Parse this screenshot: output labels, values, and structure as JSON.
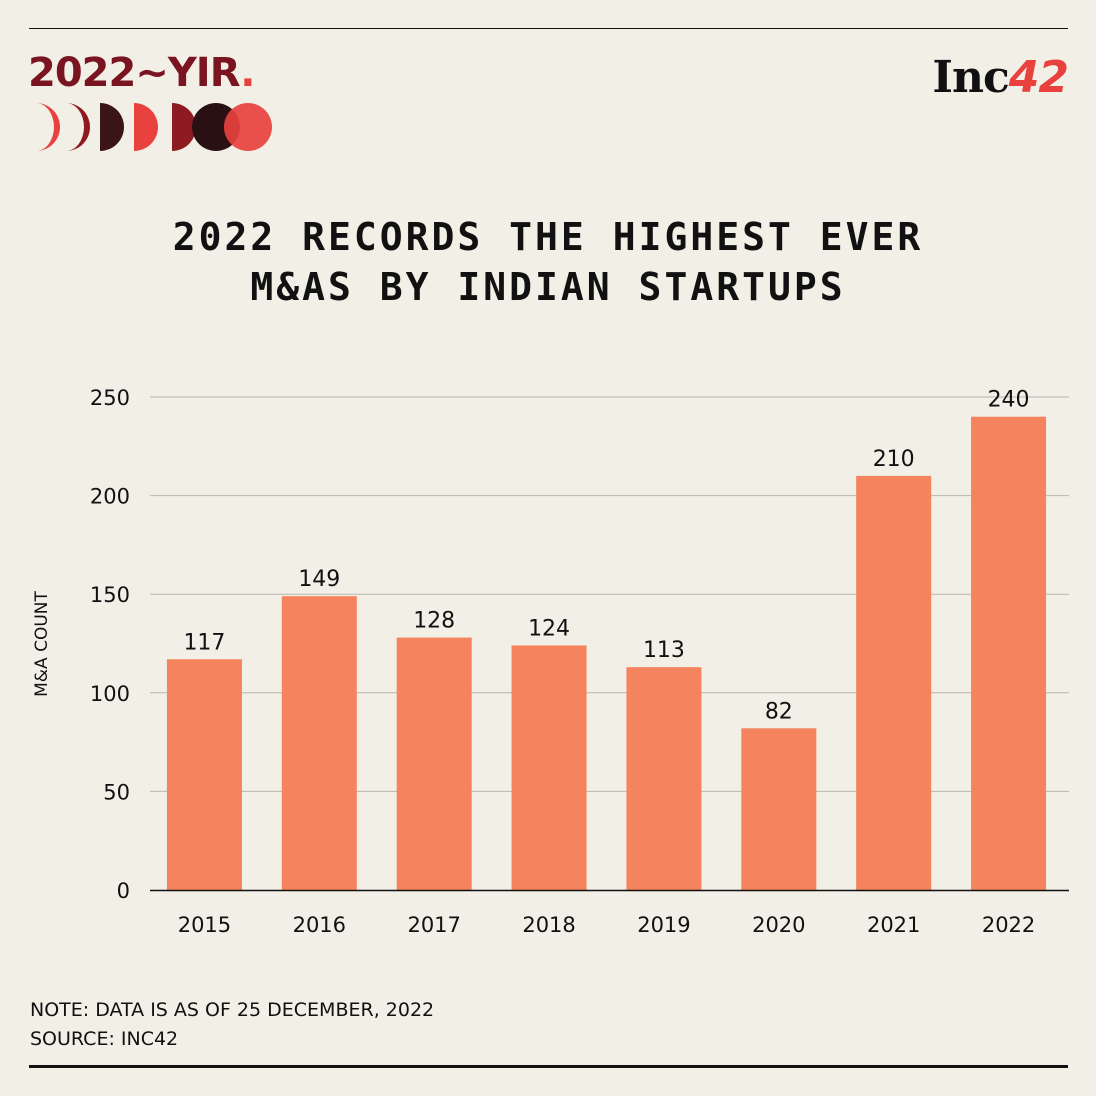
{
  "brand": {
    "yir_main": "2022~YIR",
    "yir_dot": ".",
    "moon_colors": [
      "#e8413e",
      "#8e1a22",
      "#3a1416",
      "#e8413e",
      "#8e1a22",
      "#2a1012",
      "#e8413e"
    ],
    "logo_text": "Inc",
    "logo_num": "42"
  },
  "title": {
    "line1": "2022 RECORDS THE HIGHEST EVER",
    "line2": "M&AS BY INDIAN STARTUPS"
  },
  "chart_data": {
    "type": "bar",
    "categories": [
      "2015",
      "2016",
      "2017",
      "2018",
      "2019",
      "2020",
      "2021",
      "2022"
    ],
    "values": [
      117,
      149,
      128,
      124,
      113,
      82,
      210,
      240
    ],
    "data_labels": [
      "117",
      "149",
      "128",
      "124",
      "113",
      "82",
      "210",
      "240"
    ],
    "ylabel": "M&A COUNT",
    "ylim": [
      0,
      250
    ],
    "yticks": [
      0,
      50,
      100,
      150,
      200,
      250
    ],
    "grid": true,
    "bar_color": "#f5835e",
    "grid_color": "#b9b6ae"
  },
  "notes": {
    "note": "NOTE: DATA IS AS OF 25 DECEMBER, 2022",
    "source": "SOURCE: INC42"
  }
}
